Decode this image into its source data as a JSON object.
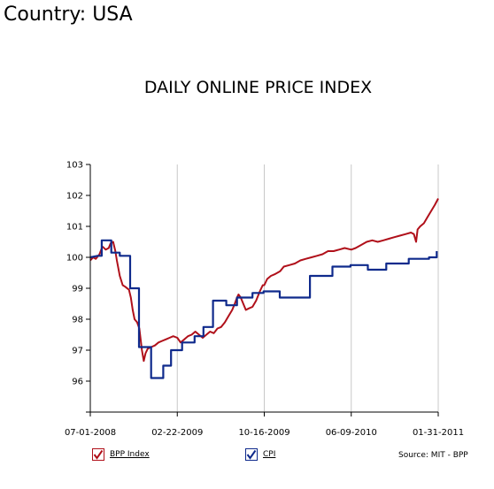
{
  "header": {
    "country": "Country: USA"
  },
  "chart_data": {
    "type": "line",
    "title": "DAILY ONLINE PRICE INDEX",
    "xlabel": "",
    "ylabel": "",
    "x_tick_labels": [
      "07-01-2008",
      "02-22-2009",
      "10-16-2009",
      "06-09-2010",
      "01-31-2011"
    ],
    "x_tick_days": [
      0,
      236,
      472,
      708,
      944
    ],
    "y_ticks": [
      103,
      102,
      101,
      100,
      99,
      98,
      97,
      96
    ],
    "ylim": [
      95,
      103
    ],
    "xlim_days": [
      0,
      944
    ],
    "grid": "vertical",
    "legend": "bottom-left",
    "source": "Source: MIT - BPP",
    "colors": {
      "bpp": "#b0101a",
      "cpi": "#0f2a8c"
    },
    "series": [
      {
        "name": "BPP Index",
        "points": [
          [
            0,
            99.9
          ],
          [
            8,
            100.0
          ],
          [
            15,
            99.95
          ],
          [
            25,
            100.1
          ],
          [
            33,
            100.35
          ],
          [
            42,
            100.25
          ],
          [
            50,
            100.3
          ],
          [
            55,
            100.45
          ],
          [
            62,
            100.5
          ],
          [
            68,
            100.2
          ],
          [
            72,
            99.9
          ],
          [
            80,
            99.4
          ],
          [
            88,
            99.1
          ],
          [
            95,
            99.05
          ],
          [
            105,
            98.95
          ],
          [
            110,
            98.7
          ],
          [
            115,
            98.3
          ],
          [
            120,
            98.0
          ],
          [
            127,
            97.9
          ],
          [
            133,
            97.7
          ],
          [
            140,
            97.0
          ],
          [
            145,
            96.65
          ],
          [
            150,
            96.9
          ],
          [
            156,
            97.05
          ],
          [
            165,
            97.1
          ],
          [
            175,
            97.15
          ],
          [
            185,
            97.25
          ],
          [
            195,
            97.3
          ],
          [
            205,
            97.35
          ],
          [
            215,
            97.4
          ],
          [
            225,
            97.45
          ],
          [
            236,
            97.4
          ],
          [
            245,
            97.25
          ],
          [
            255,
            97.35
          ],
          [
            265,
            97.45
          ],
          [
            275,
            97.5
          ],
          [
            285,
            97.6
          ],
          [
            295,
            97.5
          ],
          [
            305,
            97.4
          ],
          [
            315,
            97.5
          ],
          [
            325,
            97.6
          ],
          [
            335,
            97.55
          ],
          [
            345,
            97.7
          ],
          [
            355,
            97.75
          ],
          [
            365,
            97.9
          ],
          [
            375,
            98.1
          ],
          [
            385,
            98.3
          ],
          [
            392,
            98.5
          ],
          [
            398,
            98.7
          ],
          [
            402,
            98.8
          ],
          [
            408,
            98.7
          ],
          [
            415,
            98.5
          ],
          [
            422,
            98.3
          ],
          [
            430,
            98.35
          ],
          [
            440,
            98.4
          ],
          [
            450,
            98.6
          ],
          [
            460,
            98.9
          ],
          [
            468,
            99.1
          ],
          [
            472,
            99.1
          ],
          [
            480,
            99.3
          ],
          [
            490,
            99.4
          ],
          [
            500,
            99.45
          ],
          [
            515,
            99.55
          ],
          [
            525,
            99.7
          ],
          [
            540,
            99.75
          ],
          [
            555,
            99.8
          ],
          [
            570,
            99.9
          ],
          [
            585,
            99.95
          ],
          [
            600,
            100.0
          ],
          [
            615,
            100.05
          ],
          [
            630,
            100.1
          ],
          [
            645,
            100.2
          ],
          [
            660,
            100.2
          ],
          [
            675,
            100.25
          ],
          [
            690,
            100.3
          ],
          [
            708,
            100.25
          ],
          [
            720,
            100.3
          ],
          [
            735,
            100.4
          ],
          [
            750,
            100.5
          ],
          [
            765,
            100.55
          ],
          [
            780,
            100.5
          ],
          [
            795,
            100.55
          ],
          [
            810,
            100.6
          ],
          [
            825,
            100.65
          ],
          [
            840,
            100.7
          ],
          [
            855,
            100.75
          ],
          [
            870,
            100.8
          ],
          [
            878,
            100.75
          ],
          [
            884,
            100.5
          ],
          [
            888,
            100.9
          ],
          [
            895,
            101.0
          ],
          [
            905,
            101.1
          ],
          [
            915,
            101.3
          ],
          [
            925,
            101.5
          ],
          [
            935,
            101.7
          ],
          [
            944,
            101.9
          ]
        ]
      },
      {
        "name": "CPI",
        "points": [
          [
            0,
            100.0
          ],
          [
            20,
            100.05
          ],
          [
            31,
            100.05
          ],
          [
            31,
            100.55
          ],
          [
            57,
            100.55
          ],
          [
            57,
            100.15
          ],
          [
            80,
            100.15
          ],
          [
            80,
            100.05
          ],
          [
            108,
            100.05
          ],
          [
            108,
            99.0
          ],
          [
            132,
            99.0
          ],
          [
            132,
            97.1
          ],
          [
            165,
            97.1
          ],
          [
            165,
            96.1
          ],
          [
            198,
            96.1
          ],
          [
            198,
            96.5
          ],
          [
            219,
            96.5
          ],
          [
            219,
            97.0
          ],
          [
            249,
            97.0
          ],
          [
            249,
            97.25
          ],
          [
            283,
            97.25
          ],
          [
            283,
            97.45
          ],
          [
            307,
            97.45
          ],
          [
            307,
            97.75
          ],
          [
            333,
            97.75
          ],
          [
            333,
            98.6
          ],
          [
            369,
            98.6
          ],
          [
            369,
            98.45
          ],
          [
            398,
            98.45
          ],
          [
            398,
            98.7
          ],
          [
            440,
            98.7
          ],
          [
            440,
            98.85
          ],
          [
            470,
            98.85
          ],
          [
            470,
            98.9
          ],
          [
            514,
            98.9
          ],
          [
            514,
            98.7
          ],
          [
            596,
            98.7
          ],
          [
            596,
            99.4
          ],
          [
            657,
            99.4
          ],
          [
            657,
            99.7
          ],
          [
            706,
            99.7
          ],
          [
            706,
            99.75
          ],
          [
            753,
            99.75
          ],
          [
            753,
            99.6
          ],
          [
            803,
            99.6
          ],
          [
            803,
            99.8
          ],
          [
            864,
            99.8
          ],
          [
            864,
            99.95
          ],
          [
            919,
            99.95
          ],
          [
            919,
            100.0
          ],
          [
            940,
            100.0
          ],
          [
            940,
            100.2
          ]
        ]
      }
    ]
  }
}
